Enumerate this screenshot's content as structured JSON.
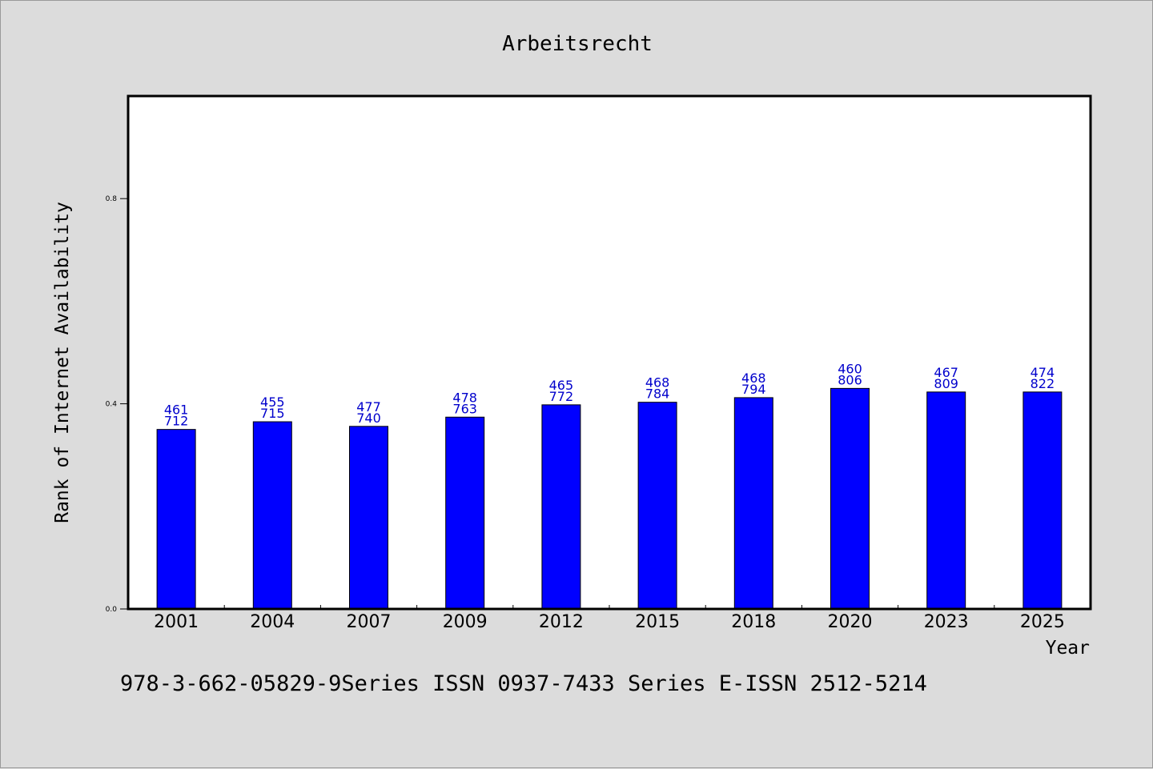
{
  "chart_data": {
    "type": "bar",
    "title": "Arbeitsrecht",
    "xlabel": "Year",
    "ylabel": "Rank of Internet Availability",
    "categories": [
      "2001",
      "2004",
      "2007",
      "2009",
      "2012",
      "2015",
      "2018",
      "2020",
      "2023",
      "2025"
    ],
    "values": [
      0.35,
      0.365,
      0.356,
      0.374,
      0.398,
      0.403,
      0.412,
      0.43,
      0.423,
      0.423
    ],
    "labels_top": [
      "461",
      "455",
      "477",
      "478",
      "465",
      "468",
      "468",
      "460",
      "467",
      "474"
    ],
    "labels_bottom": [
      "712",
      "715",
      "740",
      "763",
      "772",
      "784",
      "794",
      "806",
      "809",
      "822"
    ],
    "yticks": [
      "0.0",
      "0.4",
      "0.8"
    ],
    "ytick_values": [
      0.0,
      0.4,
      0.8
    ],
    "ylim": [
      0,
      1.0
    ],
    "grid": false,
    "bar_color": "#0000ff",
    "label_color": "#0000cc"
  },
  "footer": {
    "text": "978-3-662-05829-9Series ISSN 0937-7433 Series E-ISSN 2512-5214"
  }
}
